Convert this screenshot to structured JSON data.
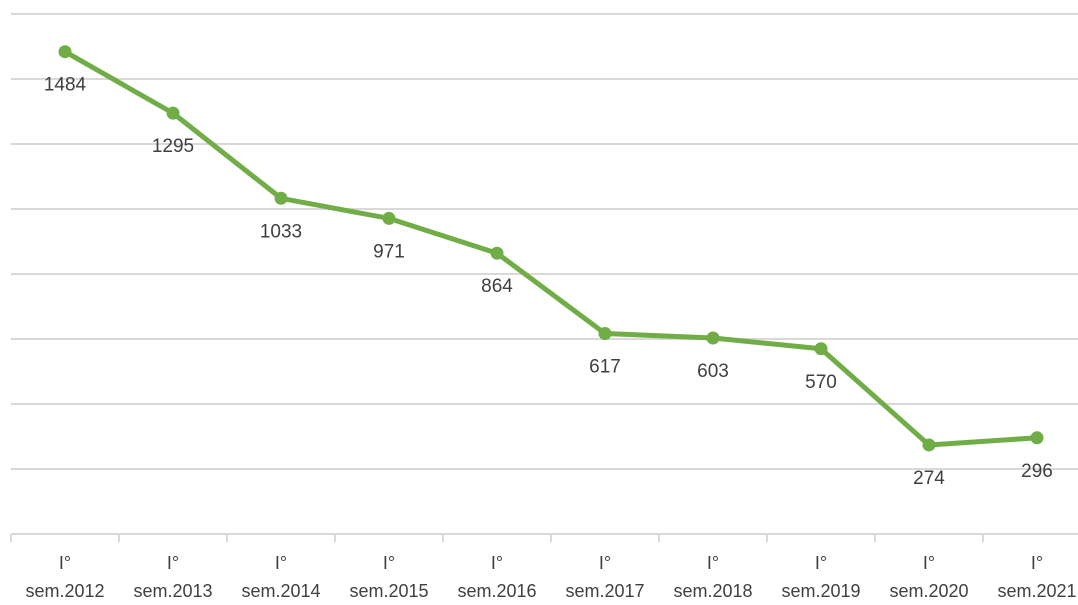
{
  "chart_data": {
    "type": "line",
    "categories": [
      "I° sem.2012",
      "I° sem.2013",
      "I° sem.2014",
      "I° sem.2015",
      "I° sem.2016",
      "I° sem.2017",
      "I° sem.2018",
      "I° sem.2019",
      "I° sem.2020",
      "I° sem.2021"
    ],
    "series": [
      {
        "name": null,
        "color": "#70ad47",
        "values": [
          1484,
          1295,
          1033,
          971,
          864,
          617,
          603,
          570,
          274,
          296
        ]
      }
    ],
    "ylim": [
      0,
      1600
    ],
    "yticks": [
      0,
      200,
      400,
      600,
      800,
      1000,
      1200,
      1400,
      1600
    ],
    "grid": true
  }
}
